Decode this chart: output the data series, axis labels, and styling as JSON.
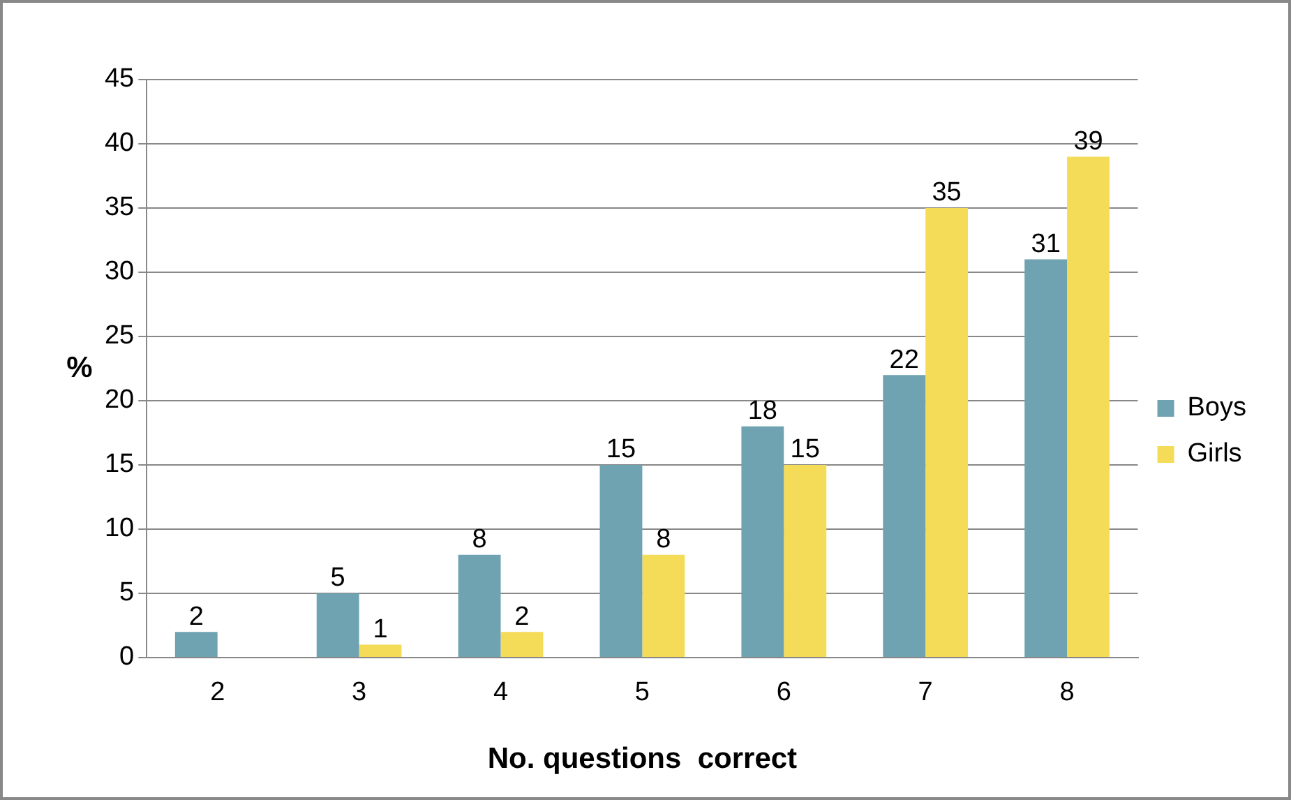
{
  "chart_data": {
    "type": "bar",
    "xlabel": "No. questions  correct",
    "ylabel": "%",
    "categories": [
      "2",
      "3",
      "4",
      "5",
      "6",
      "7",
      "8"
    ],
    "series": [
      {
        "name": "Boys",
        "color": "#6fa3b2",
        "values": [
          2,
          5,
          8,
          15,
          18,
          22,
          31
        ]
      },
      {
        "name": "Girls",
        "color": "#f5dc58",
        "values": [
          null,
          1,
          2,
          8,
          15,
          35,
          39
        ]
      }
    ],
    "ylim": [
      0,
      45
    ],
    "yticks": [
      0,
      5,
      10,
      15,
      20,
      25,
      30,
      35,
      40,
      45
    ],
    "grid": "y",
    "legend": "right",
    "data_labels": true
  }
}
